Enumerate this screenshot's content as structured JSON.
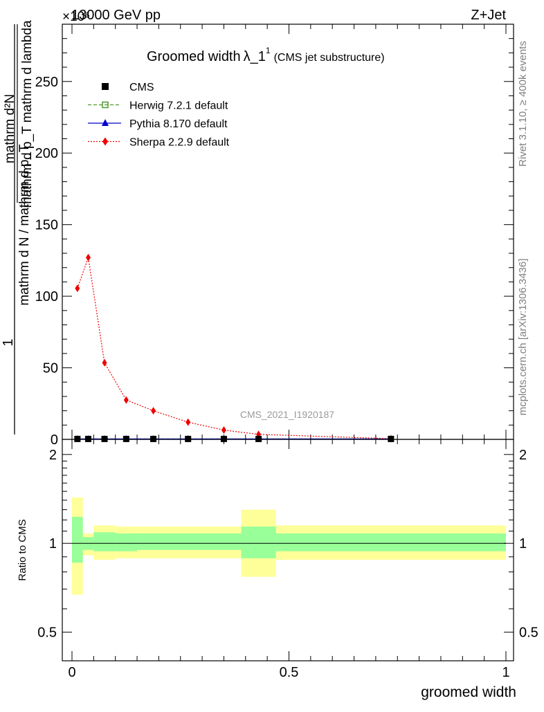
{
  "header": {
    "left": "13000 GeV pp",
    "right": "Z+Jet",
    "exponent": "×10⁶"
  },
  "title": {
    "main": "Groomed width",
    "symbol": "λ_1",
    "sup": "1",
    "sub": "(CMS jet substructure)"
  },
  "ylabel_main": {
    "numer_prefix": "1",
    "frac_top": "mathrm d²N",
    "frac_bottom": "mathrm d p_T mathrm d lambda",
    "denom": "mathrm d N / mathrm d p_T"
  },
  "ylabel_ratio": "Ratio to CMS",
  "xlabel": "groomed width",
  "side_texts": {
    "rivet": "Rivet 3.1.10, ≥ 400k events",
    "mcplots": "mcplots.cern.ch [arXiv:1306.3436]"
  },
  "watermark": "CMS_2021_I1920187",
  "legend": [
    {
      "label": "CMS",
      "color": "#000000",
      "marker": "square-filled",
      "line": "none"
    },
    {
      "label": "Herwig 7.2.1 default",
      "color": "#4c9a2a",
      "marker": "square-open",
      "line": "dashed"
    },
    {
      "label": "Pythia 8.170 default",
      "color": "#0000cc",
      "marker": "triangle",
      "line": "solid"
    },
    {
      "label": "Sherpa 2.2.9 default",
      "color": "#ee0000",
      "marker": "diamond",
      "line": "dotted"
    }
  ],
  "chart_data": {
    "type": "line",
    "xlim": [
      0,
      1
    ],
    "ylim_main": [
      0,
      290
    ],
    "ylim_ratio": [
      0.4,
      2.25
    ],
    "y_scale_factor": "1e6",
    "ratio_scale": "log",
    "x_ticks": [
      "0",
      "0.5",
      "1"
    ],
    "y_ticks_main": [
      "0",
      "50",
      "100",
      "150",
      "200",
      "250"
    ],
    "y_ticks_ratio": [
      "0.5",
      "1",
      "2"
    ],
    "series": [
      {
        "name": "CMS",
        "x": [
          0.0125,
          0.0375,
          0.075,
          0.125,
          0.1875,
          0.2675,
          0.35,
          0.43,
          0.735
        ],
        "y": [
          0.3,
          0.3,
          0.3,
          0.3,
          0.3,
          0.3,
          0.3,
          0.3,
          0.3
        ]
      },
      {
        "name": "Herwig 7.2.1 default",
        "x": [
          0.0125,
          0.0375,
          0.075,
          0.125,
          0.1875,
          0.2675,
          0.35,
          0.43,
          0.735
        ],
        "y": [
          0.3,
          0.3,
          0.3,
          0.3,
          0.3,
          0.3,
          0.3,
          0.3,
          0.3
        ]
      },
      {
        "name": "Pythia 8.170 default",
        "x": [
          0.0125,
          0.0375,
          0.075,
          0.125,
          0.1875,
          0.2675,
          0.35,
          0.43,
          0.735
        ],
        "y": [
          0.3,
          0.3,
          0.3,
          0.3,
          0.3,
          0.3,
          0.3,
          0.3,
          0.3
        ]
      },
      {
        "name": "Sherpa 2.2.9 default",
        "x": [
          0.0125,
          0.0375,
          0.075,
          0.125,
          0.1875,
          0.2675,
          0.35,
          0.43,
          0.735
        ],
        "y": [
          105.5,
          127,
          53.5,
          27.5,
          20,
          12,
          6.5,
          3.5,
          0.5
        ]
      }
    ],
    "ratio_bands": [
      {
        "x0": 0.0,
        "x1": 0.025,
        "stat_lo": 0.86,
        "stat_hi": 1.23,
        "tot_lo": 0.67,
        "tot_hi": 1.43
      },
      {
        "x0": 0.025,
        "x1": 0.05,
        "stat_lo": 0.95,
        "stat_hi": 1.05,
        "tot_lo": 0.91,
        "tot_hi": 1.08
      },
      {
        "x0": 0.05,
        "x1": 0.1,
        "stat_lo": 0.94,
        "stat_hi": 1.09,
        "tot_lo": 0.88,
        "tot_hi": 1.15
      },
      {
        "x0": 0.1,
        "x1": 0.15,
        "stat_lo": 0.94,
        "stat_hi": 1.08,
        "tot_lo": 0.89,
        "tot_hi": 1.14
      },
      {
        "x0": 0.15,
        "x1": 0.39,
        "stat_lo": 0.95,
        "stat_hi": 1.08,
        "tot_lo": 0.89,
        "tot_hi": 1.14
      },
      {
        "x0": 0.39,
        "x1": 0.47,
        "stat_lo": 0.89,
        "stat_hi": 1.14,
        "tot_lo": 0.77,
        "tot_hi": 1.3
      },
      {
        "x0": 0.47,
        "x1": 1.0,
        "stat_lo": 0.94,
        "stat_hi": 1.08,
        "tot_lo": 0.88,
        "tot_hi": 1.15
      }
    ],
    "band_colors": {
      "stat": "#99ff99",
      "total": "#ffff99"
    }
  }
}
